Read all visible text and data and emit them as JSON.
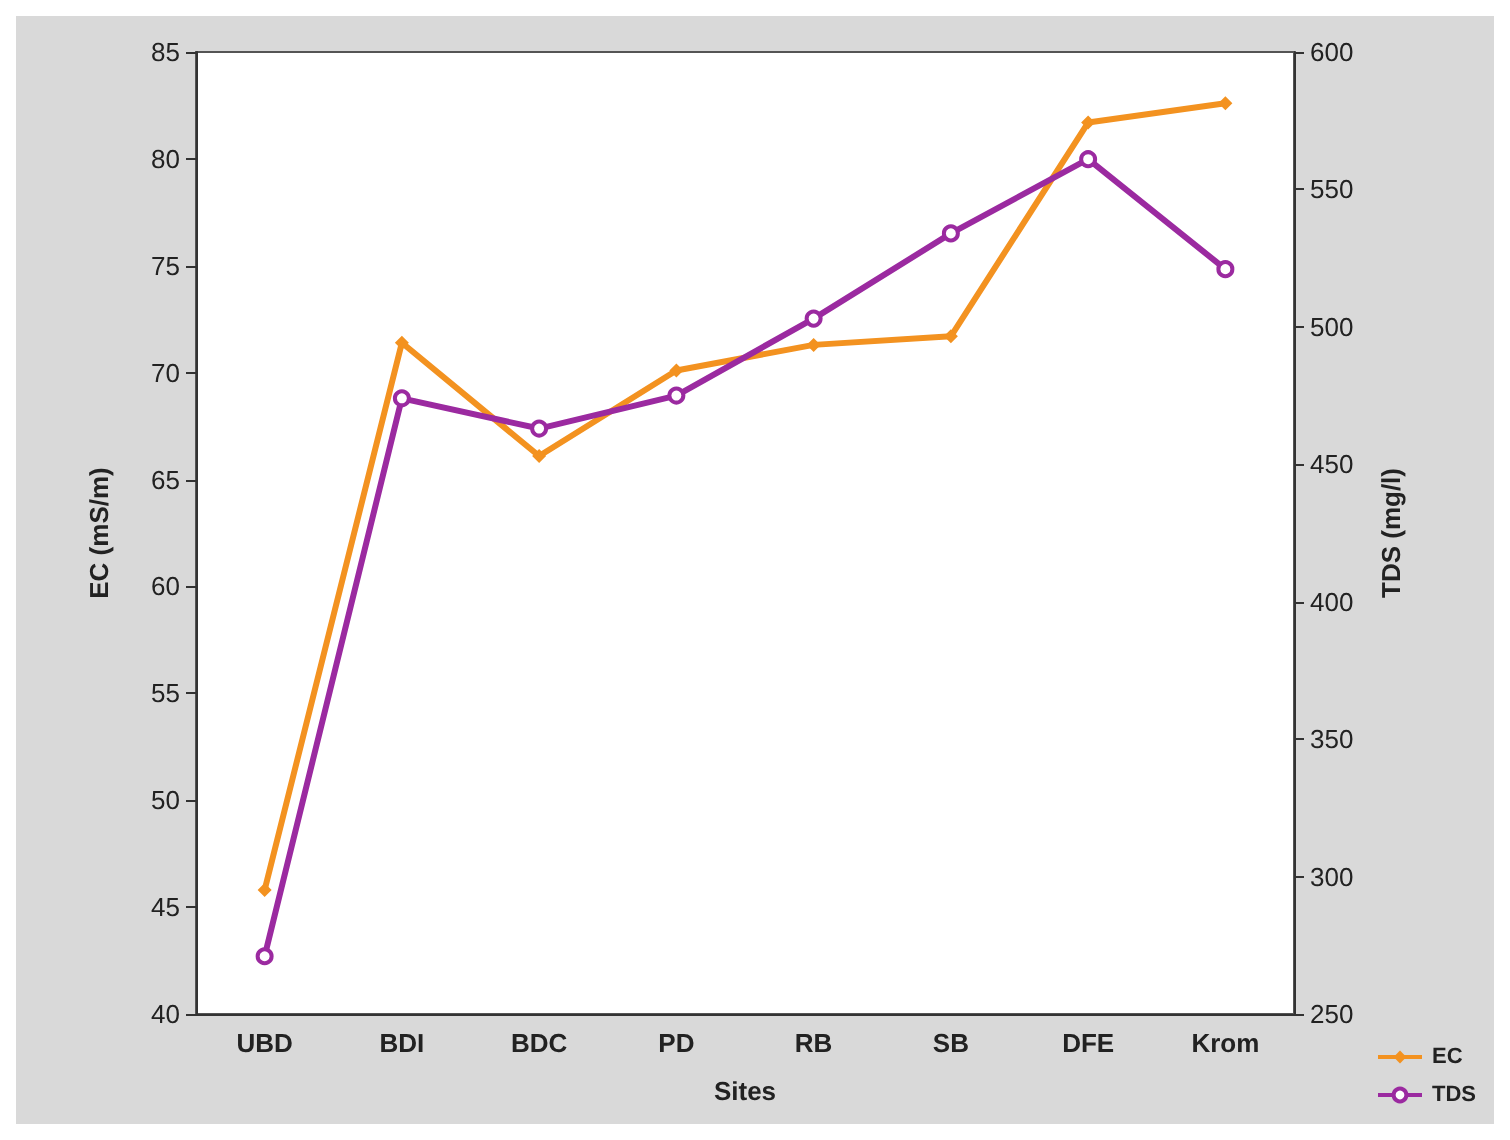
{
  "chart_data": {
    "type": "line",
    "xlabel": "Sites",
    "ylabel": "EC (mS/m)",
    "y2label": "TDS (mg/l)",
    "categories": [
      "UBD",
      "BDI",
      "BDC",
      "PD",
      "RB",
      "SB",
      "DFE",
      "Krom"
    ],
    "series": [
      {
        "name": "EC",
        "color": "#f39220",
        "marker": "diamond",
        "values": [
          45.8,
          71.4,
          66.1,
          70.1,
          71.3,
          71.7,
          81.7,
          82.6
        ]
      },
      {
        "name": "TDS",
        "color": "#9b2aa0",
        "marker": "circle",
        "axis": "y2",
        "values": [
          271,
          474,
          463,
          475,
          503,
          534,
          561,
          521
        ]
      }
    ],
    "ylim": [
      40,
      85
    ],
    "yticks": [
      40,
      45,
      50,
      55,
      60,
      65,
      70,
      75,
      80,
      85
    ],
    "y2lim": [
      250,
      600
    ],
    "y2ticks": [
      250,
      300,
      350,
      400,
      450,
      500,
      550,
      600
    ],
    "grid": false,
    "legend": "bottom right"
  }
}
